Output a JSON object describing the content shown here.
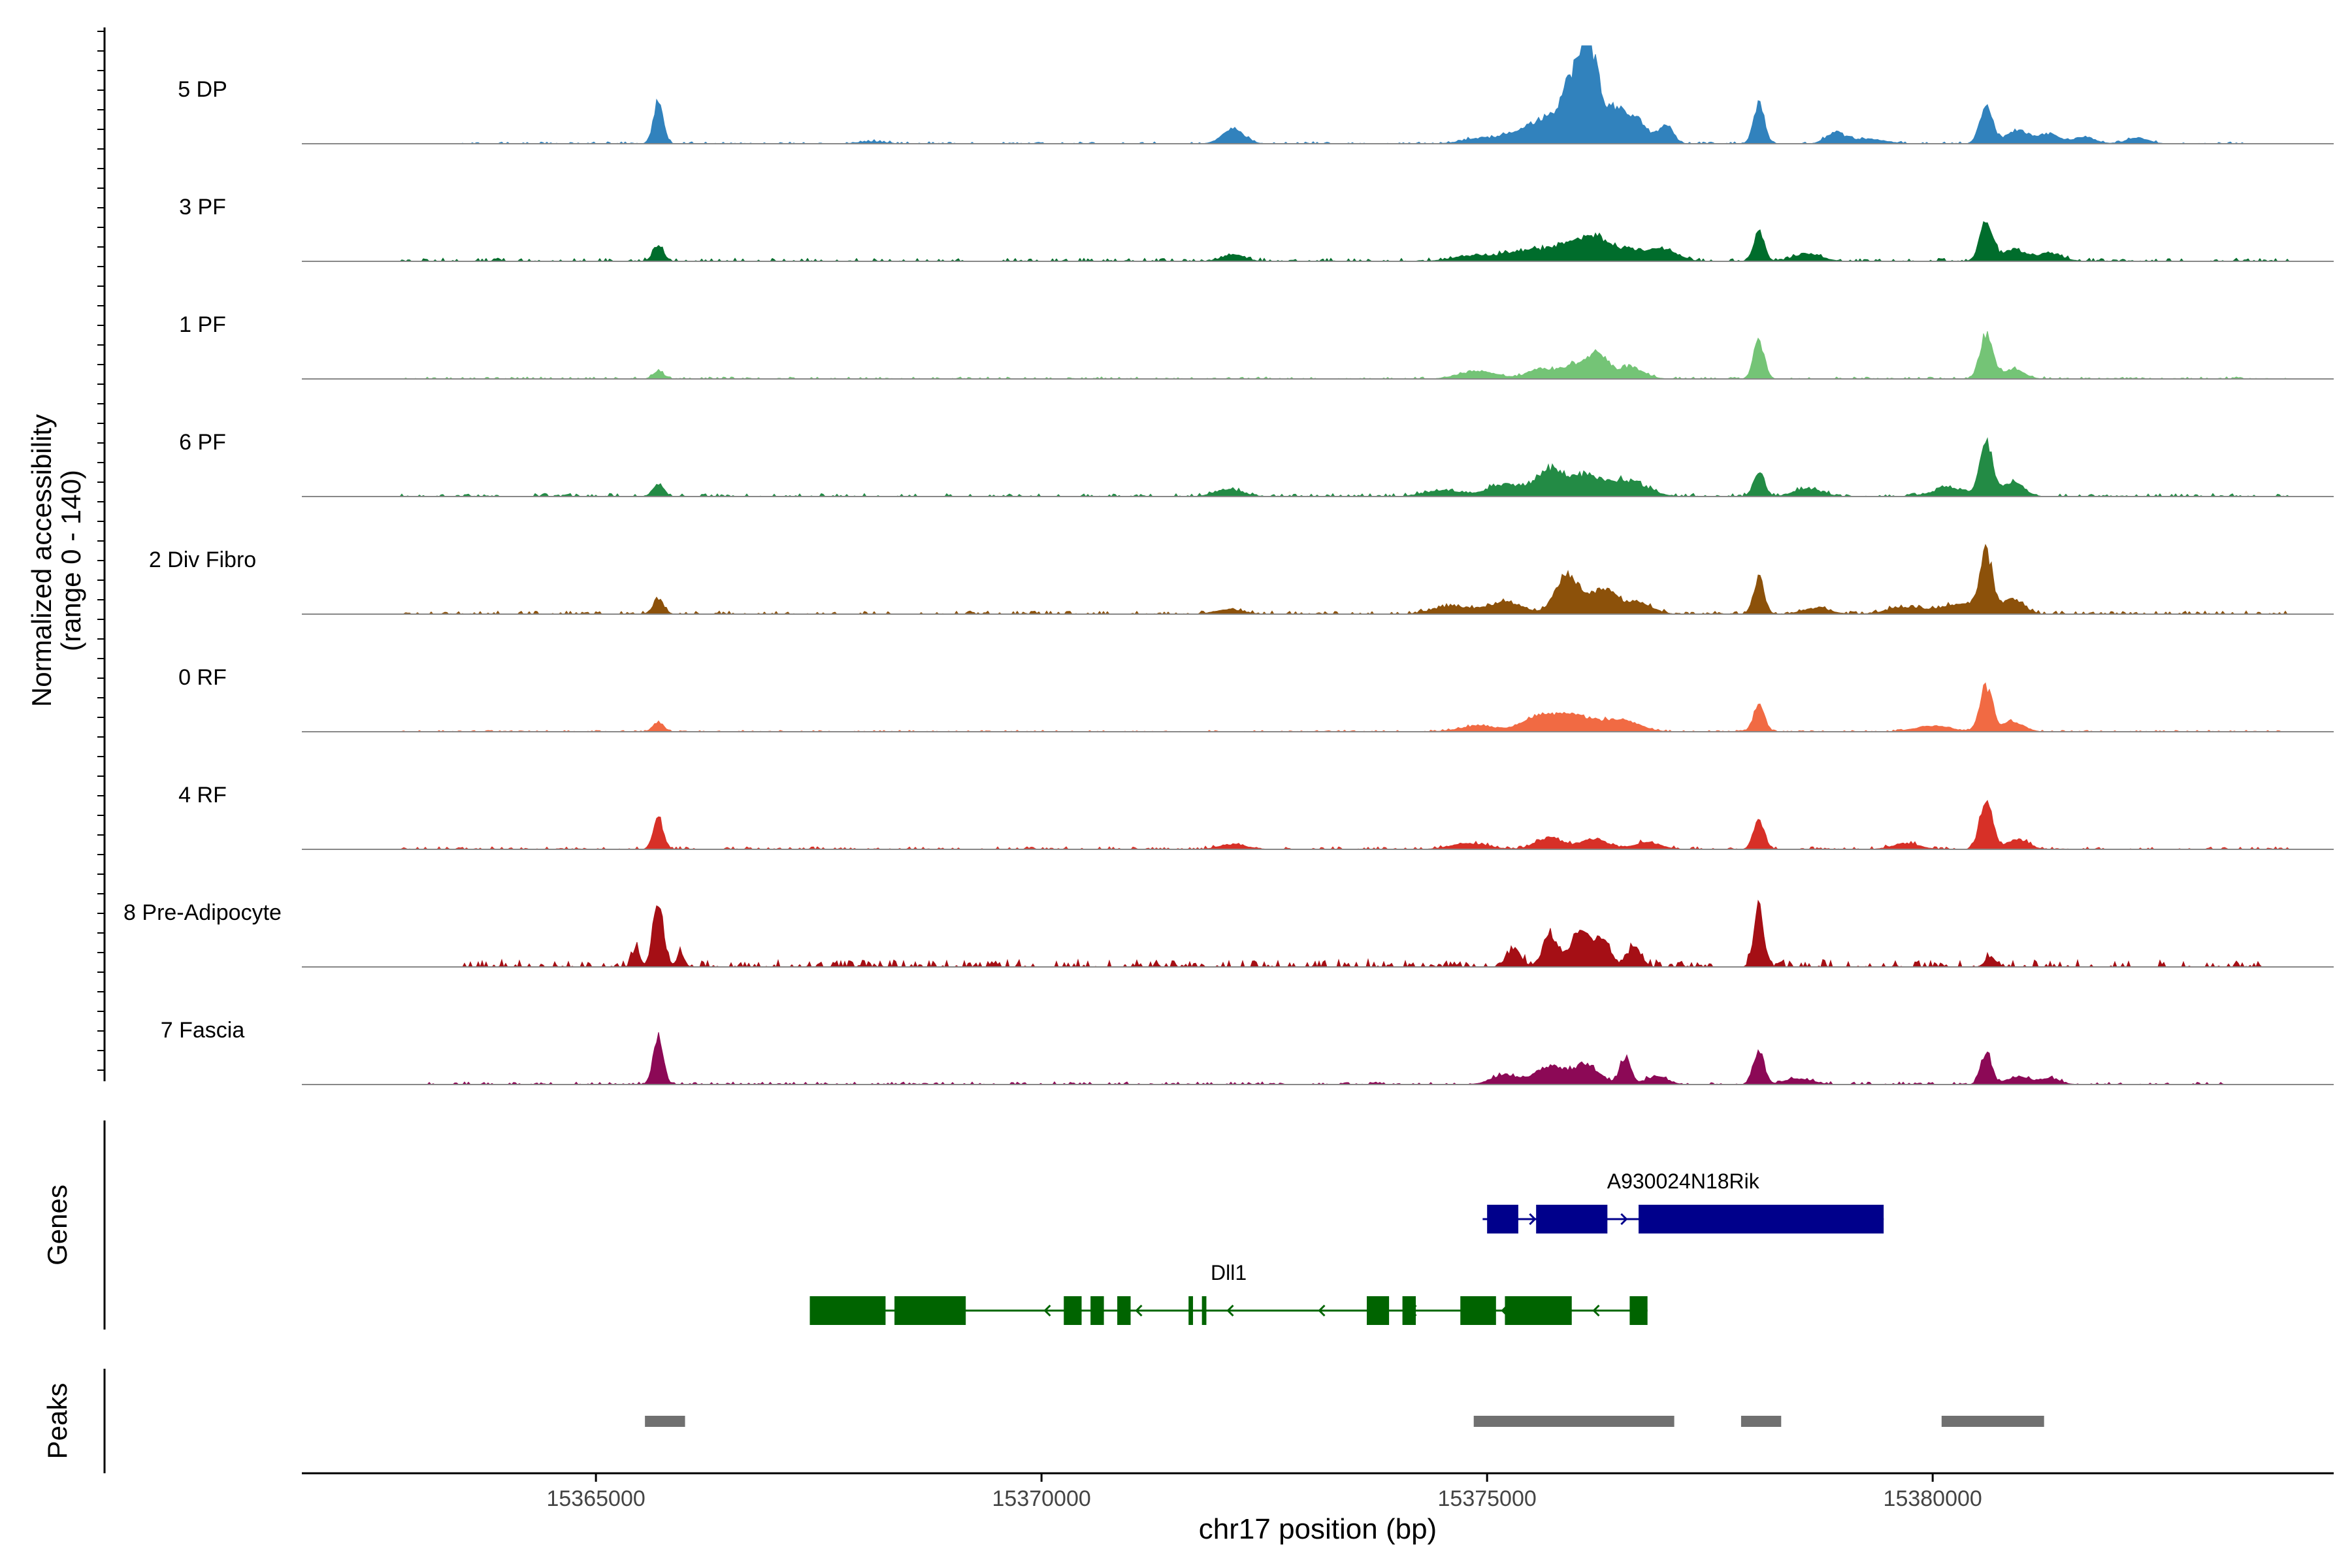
{
  "chart_data": {
    "type": "area",
    "title": "",
    "ylabel_line1": "Normalized accessibility",
    "ylabel_line2": "(range 0 - 140)",
    "ylim": [
      0,
      140
    ],
    "xlabel": "chr17 position (bp)",
    "xlim": [
      15361700,
      15384500
    ],
    "x_ticks": [
      15365000,
      15370000,
      15375000,
      15380000
    ],
    "x_tick_labels": [
      "15365000",
      "15370000",
      "15375000",
      "15380000"
    ],
    "tracks": [
      {
        "name": "5 DP",
        "color": "#3182bd",
        "peaks": [
          [
            15365700,
            0.42,
            55
          ],
          [
            15368100,
            0.02,
            150
          ],
          [
            15372150,
            0.15,
            120
          ],
          [
            15374900,
            0.05,
            180
          ],
          [
            15375400,
            0.12,
            200
          ],
          [
            15375700,
            0.22,
            160
          ],
          [
            15375950,
            0.55,
            110
          ],
          [
            15376150,
            0.95,
            100
          ],
          [
            15376450,
            0.35,
            120
          ],
          [
            15376700,
            0.22,
            100
          ],
          [
            15377000,
            0.2,
            80
          ],
          [
            15378050,
            0.4,
            60
          ],
          [
            15378900,
            0.1,
            100
          ],
          [
            15379250,
            0.05,
            200
          ],
          [
            15380600,
            0.38,
            70
          ],
          [
            15380950,
            0.14,
            120
          ],
          [
            15381300,
            0.1,
            120
          ],
          [
            15381700,
            0.07,
            120
          ],
          [
            15382300,
            0.06,
            120
          ]
        ],
        "noise": 0.02,
        "noise_range": [
          15363300,
          15383500
        ]
      },
      {
        "name": "3 PF",
        "color": "#006d2c",
        "peaks": [
          [
            15365700,
            0.15,
            60
          ],
          [
            15372150,
            0.07,
            120
          ],
          [
            15374800,
            0.05,
            200
          ],
          [
            15375400,
            0.1,
            250
          ],
          [
            15375900,
            0.15,
            200
          ],
          [
            15376200,
            0.2,
            150
          ],
          [
            15376600,
            0.12,
            200
          ],
          [
            15377000,
            0.1,
            150
          ],
          [
            15378050,
            0.3,
            60
          ],
          [
            15378600,
            0.08,
            150
          ],
          [
            15380600,
            0.42,
            70
          ],
          [
            15380900,
            0.12,
            120
          ],
          [
            15381300,
            0.08,
            150
          ]
        ],
        "noise": 0.03,
        "noise_range": [
          15362800,
          15384000
        ]
      },
      {
        "name": "1 PF",
        "color": "#74c476",
        "peaks": [
          [
            15365700,
            0.08,
            60
          ],
          [
            15374900,
            0.08,
            200
          ],
          [
            15375600,
            0.1,
            150
          ],
          [
            15376000,
            0.15,
            150
          ],
          [
            15376250,
            0.22,
            100
          ],
          [
            15376600,
            0.12,
            150
          ],
          [
            15378050,
            0.38,
            60
          ],
          [
            15380600,
            0.45,
            70
          ],
          [
            15380900,
            0.1,
            120
          ]
        ],
        "noise": 0.02,
        "noise_range": [
          15362800,
          15384000
        ]
      },
      {
        "name": "6 PF",
        "color": "#238b45",
        "peaks": [
          [
            15365700,
            0.13,
            60
          ],
          [
            15372100,
            0.07,
            150
          ],
          [
            15374500,
            0.06,
            200
          ],
          [
            15375200,
            0.12,
            200
          ],
          [
            15375700,
            0.25,
            150
          ],
          [
            15376100,
            0.2,
            200
          ],
          [
            15376600,
            0.15,
            200
          ],
          [
            15378050,
            0.25,
            60
          ],
          [
            15378600,
            0.08,
            150
          ],
          [
            15380200,
            0.08,
            200
          ],
          [
            15380600,
            0.55,
            70
          ],
          [
            15380900,
            0.15,
            120
          ]
        ],
        "noise": 0.03,
        "noise_range": [
          15362800,
          15384000
        ]
      },
      {
        "name": "2 Div Fibro",
        "color": "#8c510a",
        "peaks": [
          [
            15365700,
            0.15,
            60
          ],
          [
            15372100,
            0.05,
            150
          ],
          [
            15374600,
            0.08,
            200
          ],
          [
            15375200,
            0.12,
            200
          ],
          [
            15375900,
            0.4,
            130
          ],
          [
            15376300,
            0.25,
            150
          ],
          [
            15376700,
            0.12,
            150
          ],
          [
            15378050,
            0.35,
            60
          ],
          [
            15378700,
            0.06,
            150
          ],
          [
            15379700,
            0.07,
            200
          ],
          [
            15380300,
            0.1,
            200
          ],
          [
            15380600,
            0.6,
            70
          ],
          [
            15380900,
            0.15,
            120
          ]
        ],
        "noise": 0.03,
        "noise_range": [
          15362800,
          15384000
        ]
      },
      {
        "name": "0 RF",
        "color": "#f16a43",
        "peaks": [
          [
            15365700,
            0.1,
            60
          ],
          [
            15374900,
            0.06,
            200
          ],
          [
            15375600,
            0.15,
            200
          ],
          [
            15376000,
            0.15,
            200
          ],
          [
            15376500,
            0.12,
            200
          ],
          [
            15378050,
            0.28,
            60
          ],
          [
            15380000,
            0.06,
            200
          ],
          [
            15380600,
            0.45,
            70
          ],
          [
            15380900,
            0.1,
            120
          ]
        ],
        "noise": 0.015,
        "noise_range": [
          15362800,
          15384000
        ]
      },
      {
        "name": "4 RF",
        "color": "#d73027",
        "peaks": [
          [
            15365700,
            0.33,
            55
          ],
          [
            15372150,
            0.05,
            150
          ],
          [
            15374800,
            0.06,
            200
          ],
          [
            15375700,
            0.12,
            150
          ],
          [
            15376200,
            0.1,
            150
          ],
          [
            15376800,
            0.07,
            150
          ],
          [
            15378050,
            0.3,
            60
          ],
          [
            15379700,
            0.06,
            150
          ],
          [
            15380600,
            0.52,
            70
          ],
          [
            15380950,
            0.1,
            120
          ]
        ],
        "noise": 0.025,
        "noise_range": [
          15362800,
          15384000
        ]
      },
      {
        "name": "8 Pre-Adipocyte",
        "color": "#a50f15",
        "peaks": [
          [
            15365700,
            0.65,
            60
          ],
          [
            15365450,
            0.2,
            40
          ],
          [
            15365950,
            0.15,
            40
          ],
          [
            15375300,
            0.18,
            80
          ],
          [
            15375700,
            0.3,
            80
          ],
          [
            15376050,
            0.4,
            100
          ],
          [
            15376300,
            0.3,
            80
          ],
          [
            15376650,
            0.2,
            80
          ],
          [
            15378050,
            0.55,
            55
          ],
          [
            15380650,
            0.1,
            60
          ]
        ],
        "noise": 0.07,
        "noise_range": [
          15363500,
          15383700
        ]
      },
      {
        "name": "7 Fascia",
        "color": "#8c0956",
        "peaks": [
          [
            15365700,
            0.48,
            55
          ],
          [
            15375200,
            0.1,
            150
          ],
          [
            15375700,
            0.18,
            150
          ],
          [
            15376100,
            0.2,
            150
          ],
          [
            15376550,
            0.28,
            60
          ],
          [
            15376900,
            0.08,
            120
          ],
          [
            15378050,
            0.35,
            60
          ],
          [
            15378500,
            0.06,
            150
          ],
          [
            15380600,
            0.33,
            60
          ],
          [
            15380950,
            0.08,
            120
          ],
          [
            15381300,
            0.06,
            120
          ]
        ],
        "noise": 0.025,
        "noise_range": [
          15363000,
          15383300
        ]
      }
    ],
    "genes": {
      "panel_label": "Genes",
      "items": [
        {
          "name": "A930024N18Rik",
          "strand": "+",
          "color": "#00008b",
          "start": 15374950,
          "end": 15379450,
          "exons": [
            [
              15375000,
              15375350
            ],
            [
              15375550,
              15376350
            ],
            [
              15376700,
              15379450
            ]
          ]
        },
        {
          "name": "Dll1",
          "strand": "-",
          "color": "#006400",
          "start": 15367400,
          "end": 15376800,
          "exons": [
            [
              15367400,
              15368250
            ],
            [
              15368350,
              15369150
            ],
            [
              15370250,
              15370450
            ],
            [
              15370550,
              15370700
            ],
            [
              15370850,
              15371000
            ],
            [
              15371650,
              15371700
            ],
            [
              15371800,
              15371850
            ],
            [
              15373650,
              15373900
            ],
            [
              15374050,
              15374200
            ],
            [
              15374700,
              15375100
            ],
            [
              15375200,
              15375950
            ],
            [
              15376600,
              15376800
            ]
          ]
        }
      ]
    },
    "peaks_panel": {
      "panel_label": "Peaks",
      "color": "#707070",
      "regions": [
        [
          15365550,
          15366000
        ],
        [
          15374850,
          15377100
        ],
        [
          15377850,
          15378300
        ],
        [
          15380100,
          15381250
        ]
      ]
    }
  }
}
